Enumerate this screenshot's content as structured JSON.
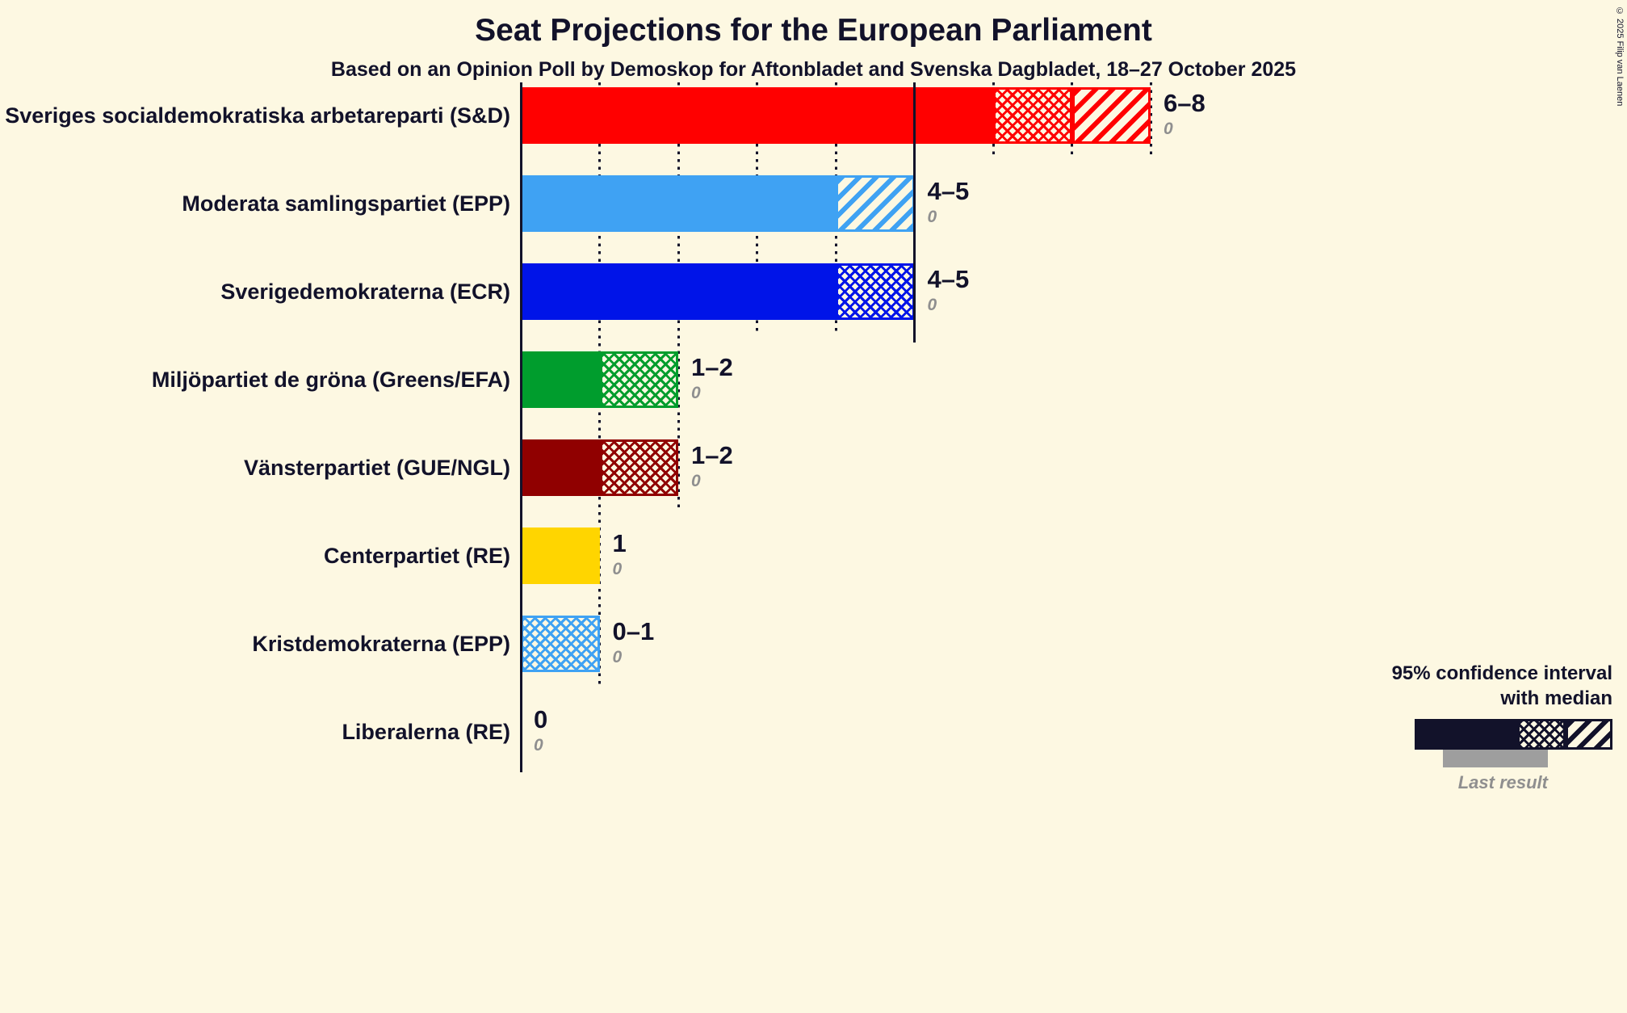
{
  "chart_data": {
    "type": "bar",
    "title": "Seat Projections for the European Parliament",
    "subtitle": "Based on an Opinion Poll by Demoskop for Aftonbladet and Svenska Dagbladet, 18–27 October 2025",
    "copyright": "© 2025 Filip van Laenen",
    "value_unit": "seats",
    "x_axis": {
      "min": 0,
      "max": 8,
      "gridlines": [
        1,
        2,
        3,
        4,
        5,
        6,
        7,
        8
      ],
      "solid_gridline_at": 5
    },
    "parties": [
      {
        "label": "Sveriges socialdemokratiska arbetareparti (S&D)",
        "color": "#FF0000",
        "ci_low": 6,
        "median": 7,
        "ci_high": 8,
        "range_label": "6–8",
        "last_result": 0
      },
      {
        "label": "Moderata samlingspartiet (EPP)",
        "color": "#3FA2F3",
        "ci_low": 4,
        "median": 4,
        "ci_high": 5,
        "range_label": "4–5",
        "last_result": 0
      },
      {
        "label": "Sverigedemokraterna (ECR)",
        "color": "#0014E8",
        "ci_low": 4,
        "median": 5,
        "ci_high": 5,
        "range_label": "4–5",
        "last_result": 0
      },
      {
        "label": "Miljöpartiet de gröna (Greens/EFA)",
        "color": "#009D2D",
        "ci_low": 1,
        "median": 2,
        "ci_high": 2,
        "range_label": "1–2",
        "last_result": 0
      },
      {
        "label": "Vänsterpartiet (GUE/NGL)",
        "color": "#900000",
        "ci_low": 1,
        "median": 2,
        "ci_high": 2,
        "range_label": "1–2",
        "last_result": 0
      },
      {
        "label": "Centerpartiet (RE)",
        "color": "#FFD500",
        "ci_low": 1,
        "median": 1,
        "ci_high": 1,
        "range_label": "1",
        "last_result": 0
      },
      {
        "label": "Kristdemokraterna (EPP)",
        "color": "#3FA2F3",
        "ci_low": 0,
        "median": 1,
        "ci_high": 1,
        "range_label": "0–1",
        "last_result": 0
      },
      {
        "label": "Liberalerna (RE)",
        "color": null,
        "ci_low": 0,
        "median": 0,
        "ci_high": 0,
        "range_label": "0",
        "last_result": 0
      }
    ],
    "legend": {
      "ci_line1": "95% confidence interval",
      "ci_line2": "with median",
      "last_result": "Last result"
    }
  }
}
